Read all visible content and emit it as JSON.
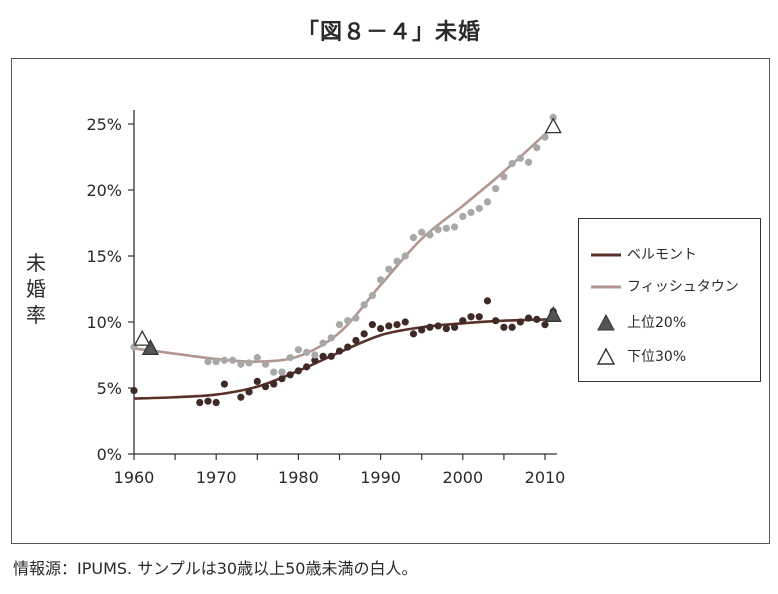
{
  "title": "「図８－４」未婚",
  "ylabel_chars": [
    "未",
    "婚",
    "率"
  ],
  "source": "情報源：IPUMS. サンプルは30歳以上50歳未満の白人。",
  "legend": [
    {
      "label": "ベルモント",
      "type": "line",
      "color": "#5a3128"
    },
    {
      "label": "フィッシュタウン",
      "type": "line",
      "color": "#b3978f"
    },
    {
      "label": "上位20%",
      "type": "filled-triangle",
      "color": "#555555"
    },
    {
      "label": "下位30%",
      "type": "open-triangle",
      "color": "#333333"
    }
  ],
  "chart_data": {
    "type": "scatter",
    "xlim": [
      1960,
      2010
    ],
    "ylim": [
      0,
      25
    ],
    "xticks": [
      1960,
      1970,
      1980,
      1990,
      2000,
      2010
    ],
    "yticks": [
      0,
      5,
      10,
      15,
      20,
      25
    ],
    "ytick_labels": [
      "0%",
      "5%",
      "10%",
      "15%",
      "20%",
      "25%"
    ],
    "grid": false,
    "legend_position": "right",
    "series": [
      {
        "name": "ベルモント",
        "kind": "points",
        "color": "#3f2a26",
        "points": [
          [
            1960,
            4.8
          ],
          [
            1968,
            3.9
          ],
          [
            1969,
            4.0
          ],
          [
            1970,
            3.9
          ],
          [
            1971,
            5.3
          ],
          [
            1973,
            4.3
          ],
          [
            1974,
            4.7
          ],
          [
            1975,
            5.5
          ],
          [
            1976,
            5.1
          ],
          [
            1977,
            5.3
          ],
          [
            1978,
            5.7
          ],
          [
            1979,
            6.0
          ],
          [
            1980,
            6.3
          ],
          [
            1981,
            6.6
          ],
          [
            1982,
            7.1
          ],
          [
            1983,
            7.4
          ],
          [
            1984,
            7.4
          ],
          [
            1985,
            7.8
          ],
          [
            1986,
            8.1
          ],
          [
            1987,
            8.6
          ],
          [
            1988,
            9.1
          ],
          [
            1989,
            9.8
          ],
          [
            1990,
            9.5
          ],
          [
            1991,
            9.7
          ],
          [
            1992,
            9.8
          ],
          [
            1993,
            10.0
          ],
          [
            1994,
            9.1
          ],
          [
            1995,
            9.4
          ],
          [
            1996,
            9.6
          ],
          [
            1997,
            9.7
          ],
          [
            1998,
            9.5
          ],
          [
            1999,
            9.6
          ],
          [
            2000,
            10.1
          ],
          [
            2001,
            10.4
          ],
          [
            2002,
            10.4
          ],
          [
            2003,
            11.6
          ],
          [
            2004,
            10.1
          ],
          [
            2005,
            9.6
          ],
          [
            2006,
            9.6
          ],
          [
            2007,
            10.0
          ],
          [
            2008,
            10.3
          ],
          [
            2009,
            10.2
          ],
          [
            2010,
            9.8
          ],
          [
            2011,
            10.8
          ]
        ]
      },
      {
        "name": "ベルモント",
        "kind": "trend",
        "color": "#5a3128",
        "points": [
          [
            1960,
            4.2
          ],
          [
            1965,
            4.3
          ],
          [
            1970,
            4.5
          ],
          [
            1975,
            5.1
          ],
          [
            1980,
            6.3
          ],
          [
            1985,
            7.7
          ],
          [
            1990,
            9.0
          ],
          [
            1995,
            9.6
          ],
          [
            2000,
            9.9
          ],
          [
            2005,
            10.1
          ],
          [
            2011,
            10.2
          ]
        ]
      },
      {
        "name": "フィッシュタウン",
        "kind": "points",
        "color": "#a8a8a8",
        "points": [
          [
            1960,
            8.1
          ],
          [
            1969,
            7.0
          ],
          [
            1970,
            7.0
          ],
          [
            1971,
            7.1
          ],
          [
            1972,
            7.1
          ],
          [
            1973,
            6.8
          ],
          [
            1974,
            6.9
          ],
          [
            1975,
            7.3
          ],
          [
            1976,
            6.8
          ],
          [
            1977,
            6.2
          ],
          [
            1978,
            6.2
          ],
          [
            1979,
            7.3
          ],
          [
            1980,
            7.9
          ],
          [
            1981,
            7.7
          ],
          [
            1982,
            7.5
          ],
          [
            1983,
            8.4
          ],
          [
            1984,
            8.8
          ],
          [
            1985,
            9.8
          ],
          [
            1986,
            10.1
          ],
          [
            1987,
            10.3
          ],
          [
            1988,
            11.3
          ],
          [
            1989,
            12.0
          ],
          [
            1990,
            13.2
          ],
          [
            1991,
            14.0
          ],
          [
            1992,
            14.6
          ],
          [
            1993,
            15.0
          ],
          [
            1994,
            16.4
          ],
          [
            1995,
            16.8
          ],
          [
            1996,
            16.6
          ],
          [
            1997,
            17.0
          ],
          [
            1998,
            17.1
          ],
          [
            1999,
            17.2
          ],
          [
            2000,
            18.0
          ],
          [
            2001,
            18.3
          ],
          [
            2002,
            18.6
          ],
          [
            2003,
            19.1
          ],
          [
            2004,
            20.1
          ],
          [
            2005,
            21.0
          ],
          [
            2006,
            22.0
          ],
          [
            2007,
            22.4
          ],
          [
            2008,
            22.1
          ],
          [
            2009,
            23.2
          ],
          [
            2010,
            24.0
          ],
          [
            2011,
            25.5
          ]
        ]
      },
      {
        "name": "フィッシュタウン",
        "kind": "trend",
        "color": "#b3978f",
        "points": [
          [
            1960,
            8.0
          ],
          [
            1965,
            7.6
          ],
          [
            1970,
            7.2
          ],
          [
            1975,
            7.0
          ],
          [
            1980,
            7.4
          ],
          [
            1985,
            9.2
          ],
          [
            1990,
            12.8
          ],
          [
            1995,
            16.3
          ],
          [
            2000,
            18.8
          ],
          [
            2005,
            21.4
          ],
          [
            2011,
            24.8
          ]
        ]
      },
      {
        "name": "上位20%",
        "kind": "filled-triangle",
        "color": "#555555",
        "points": [
          [
            1962,
            8.0
          ],
          [
            2011,
            10.5
          ]
        ]
      },
      {
        "name": "下位30%",
        "kind": "open-triangle",
        "color": "#333333",
        "points": [
          [
            1961,
            8.7
          ],
          [
            2011,
            24.8
          ]
        ]
      }
    ]
  }
}
